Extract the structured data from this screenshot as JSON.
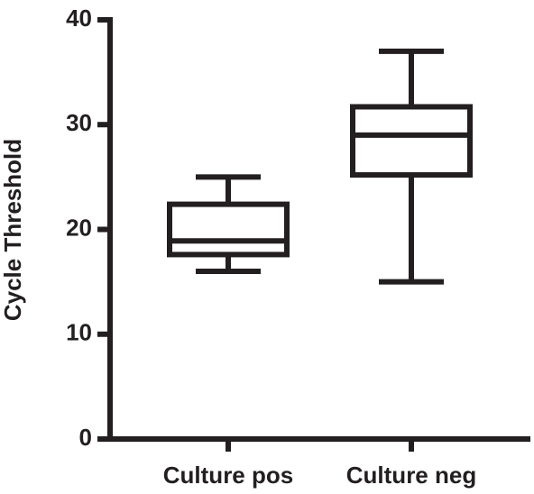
{
  "chart_data": {
    "type": "box",
    "y_label": "Cycle Threshold",
    "categories": [
      "Culture pos",
      "Culture neg"
    ],
    "min": [
      16,
      15
    ],
    "q1": [
      17.6,
      25.2
    ],
    "median": [
      18.9,
      29
    ],
    "q3": [
      22.4,
      31.7
    ],
    "max": [
      25,
      37
    ],
    "color": "#231f20",
    "ylim": [
      0,
      40
    ],
    "yticks": [
      0,
      10,
      20,
      30,
      40
    ],
    "grid": false
  }
}
